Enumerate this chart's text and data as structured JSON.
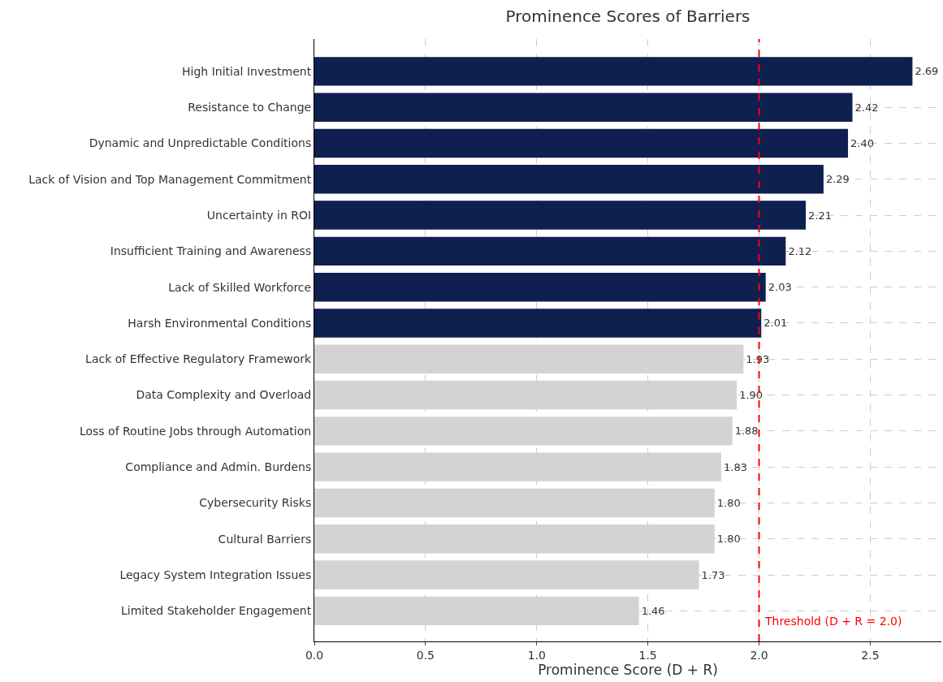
{
  "chart_data": {
    "type": "bar",
    "orientation": "horizontal",
    "title": "Prominence Scores of Barriers",
    "xlabel": "Prominence Score (D + R)",
    "categories": [
      "High Initial Investment",
      "Resistance to Change",
      "Dynamic and Unpredictable Conditions",
      "Lack of Vision and Top Management Commitment",
      "Uncertainty in ROI",
      "Insufficient Training and Awareness",
      "Lack of Skilled Workforce",
      "Harsh Environmental Conditions",
      "Lack of Effective Regulatory Framework",
      "Data Complexity and Overload",
      "Loss of Routine Jobs through Automation",
      "Compliance and Admin. Burdens",
      "Cybersecurity Risks",
      "Cultural Barriers",
      "Legacy System Integration Issues",
      "Limited Stakeholder Engagement"
    ],
    "values": [
      2.69,
      2.42,
      2.4,
      2.29,
      2.21,
      2.12,
      2.03,
      2.01,
      1.93,
      1.9,
      1.88,
      1.83,
      1.8,
      1.8,
      1.73,
      1.46
    ],
    "value_labels": [
      "2.69",
      "2.42",
      "2.40",
      "2.29",
      "2.21",
      "2.12",
      "2.03",
      "2.01",
      "1.93",
      "1.90",
      "1.88",
      "1.83",
      "1.80",
      "1.80",
      "1.73",
      "1.46"
    ],
    "colors": [
      "#0f1f4f",
      "#0f1f4f",
      "#0f1f4f",
      "#0f1f4f",
      "#0f1f4f",
      "#0f1f4f",
      "#0f1f4f",
      "#0f1f4f",
      "#d3d3d3",
      "#d3d3d3",
      "#d3d3d3",
      "#d3d3d3",
      "#d3d3d3",
      "#d3d3d3",
      "#d3d3d3",
      "#d3d3d3"
    ],
    "xlim": [
      0,
      2.82
    ],
    "xticks": [
      {
        "value": 0,
        "label": "0.0"
      },
      {
        "value": 0.5,
        "label": "0.5"
      },
      {
        "value": 1,
        "label": "1.0"
      },
      {
        "value": 1.5,
        "label": "1.5"
      },
      {
        "value": 2,
        "label": "2.0"
      },
      {
        "value": 2.5,
        "label": "2.5"
      }
    ],
    "ref_lines": [
      {
        "axis": "x",
        "value": 2.0,
        "label": "Threshold (D + R = 2.0)",
        "color": "#ff0000",
        "line_style": "dashed"
      }
    ],
    "grid": true,
    "legend": false
  }
}
